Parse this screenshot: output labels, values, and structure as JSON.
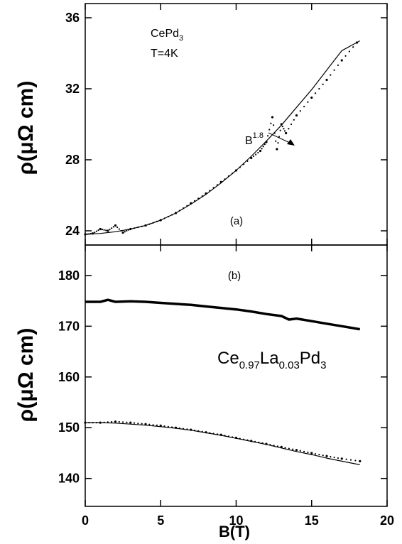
{
  "chart_data": [
    {
      "type": "line",
      "panel_label": "(a)",
      "annotation_lines": [
        "CePd",
        "T=4K"
      ],
      "annotation_sub": "3",
      "fit_label": "B",
      "fit_exponent": "1.8",
      "ylabel": "ρ(μΩ cm)",
      "xlim": [
        0,
        20
      ],
      "ylim": [
        23.2,
        36.8
      ],
      "yticks": [
        24,
        28,
        32,
        36
      ],
      "series": [
        {
          "style": "dots",
          "x": [
            0.0,
            0.5,
            1.0,
            1.5,
            2.0,
            2.5,
            3.0,
            4.0,
            5.0,
            6.0,
            7.0,
            8.0,
            9.0,
            10.0,
            11.0,
            11.6,
            12.0,
            12.4,
            12.7,
            13.0,
            13.3,
            14.0,
            15.0,
            16.0,
            17.0,
            18.0
          ],
          "y": [
            23.8,
            23.85,
            24.1,
            24.0,
            24.3,
            23.9,
            24.1,
            24.3,
            24.6,
            25.0,
            25.55,
            26.1,
            26.75,
            27.4,
            28.1,
            28.5,
            29.0,
            30.4,
            28.6,
            30.0,
            29.5,
            30.5,
            31.5,
            32.5,
            33.6,
            34.6
          ]
        },
        {
          "style": "line",
          "x": [
            0.0,
            1.0,
            2.0,
            3.0,
            4.0,
            5.0,
            6.0,
            7.0,
            8.0,
            9.0,
            10.0,
            11.0,
            12.0,
            13.0,
            14.0,
            15.0,
            16.0,
            17.0,
            18.2
          ],
          "y": [
            23.8,
            23.85,
            23.95,
            24.1,
            24.3,
            24.6,
            25.0,
            25.5,
            26.05,
            26.7,
            27.4,
            28.2,
            29.05,
            29.95,
            30.95,
            31.95,
            33.05,
            34.15,
            34.7
          ]
        }
      ]
    },
    {
      "type": "line",
      "panel_label": "(b)",
      "compound": {
        "base": "Ce",
        "s1": "0.97",
        "mid": "La",
        "s2": "0.03",
        "tail": "Pd",
        "s3": "3"
      },
      "ylabel": "ρ(μΩ cm)",
      "xlabel": "B(T)",
      "xlim": [
        0,
        20
      ],
      "ylim": [
        134.5,
        186
      ],
      "xticks": [
        0,
        5,
        10,
        15,
        20
      ],
      "yticks": [
        140,
        150,
        160,
        170,
        180
      ],
      "series": [
        {
          "style": "thick",
          "x": [
            0.0,
            1.0,
            1.5,
            2.0,
            3.0,
            4.0,
            5.0,
            6.0,
            7.0,
            8.0,
            9.0,
            10.0,
            11.0,
            12.0,
            13.0,
            13.5,
            14.0,
            15.0,
            16.0,
            17.0,
            18.2
          ],
          "y": [
            174.8,
            174.8,
            175.2,
            174.8,
            174.9,
            174.8,
            174.6,
            174.4,
            174.2,
            173.9,
            173.6,
            173.3,
            172.9,
            172.4,
            172.0,
            171.3,
            171.5,
            171.0,
            170.5,
            170.0,
            169.4
          ]
        },
        {
          "style": "dots",
          "x": [
            0.0,
            1.0,
            2.0,
            3.0,
            4.0,
            5.0,
            6.0,
            7.0,
            8.0,
            9.0,
            10.0,
            11.0,
            12.0,
            13.0,
            14.0,
            15.0,
            16.0,
            17.0,
            18.2
          ],
          "y": [
            151.0,
            151.0,
            151.2,
            151.0,
            150.7,
            150.4,
            150.0,
            149.6,
            149.1,
            148.6,
            148.0,
            147.4,
            146.8,
            146.2,
            145.6,
            145.0,
            144.4,
            143.9,
            143.4
          ]
        },
        {
          "style": "line",
          "x": [
            0.0,
            1.0,
            2.0,
            3.0,
            4.0,
            5.0,
            6.0,
            7.0,
            8.0,
            9.0,
            10.0,
            11.0,
            12.0,
            13.0,
            14.0,
            15.0,
            16.0,
            17.0,
            18.2
          ],
          "y": [
            151.0,
            151.0,
            150.9,
            150.7,
            150.5,
            150.2,
            149.9,
            149.5,
            149.0,
            148.5,
            147.9,
            147.3,
            146.7,
            146.0,
            145.3,
            144.7,
            144.0,
            143.4,
            142.7
          ]
        }
      ]
    }
  ]
}
